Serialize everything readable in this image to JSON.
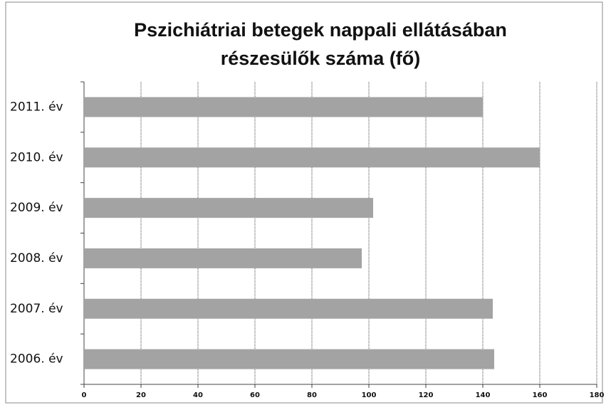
{
  "chart_data": {
    "type": "bar",
    "orientation": "horizontal",
    "title": [
      "Pszichiátriai betegek nappali ellátásában",
      "részesülők  száma (fő)"
    ],
    "categories": [
      "2011. év",
      "2010. év",
      "2009. év",
      "2008. év",
      "2007. év",
      "2006. év"
    ],
    "values": [
      140,
      160,
      101.5,
      97.5,
      143.5,
      144
    ],
    "color": "#a3a3a3",
    "xlim": [
      0,
      180
    ],
    "xticks": [
      0,
      20,
      40,
      60,
      80,
      100,
      120,
      140,
      160,
      180
    ],
    "grid": true
  }
}
